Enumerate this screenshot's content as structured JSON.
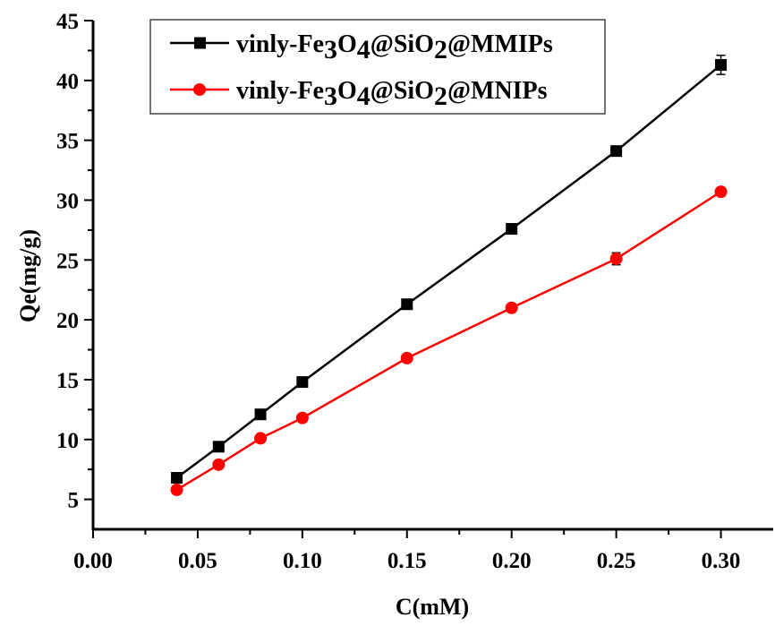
{
  "chart_data": {
    "type": "line",
    "title": "",
    "xlabel": "C(mM)",
    "ylabel": "Qe(mg/g)",
    "xlim": [
      0,
      0.325
    ],
    "ylim": [
      2.5,
      45
    ],
    "xticks": [
      "0.00",
      "0.05",
      "0.10",
      "0.15",
      "0.20",
      "0.25",
      "0.30"
    ],
    "xtick_values": [
      0,
      0.05,
      0.1,
      0.15,
      0.2,
      0.25,
      0.3
    ],
    "yticks": [
      "5",
      "10",
      "15",
      "20",
      "25",
      "30",
      "35",
      "40",
      "45"
    ],
    "ytick_values": [
      5,
      10,
      15,
      20,
      25,
      30,
      35,
      40,
      45
    ],
    "grid": false,
    "legend_position": "top-left",
    "x": [
      0.04,
      0.06,
      0.08,
      0.1,
      0.15,
      0.2,
      0.25,
      0.3
    ],
    "series": [
      {
        "name": "vinly-Fe3O4@SiO2@MMIPs",
        "legend_parts": [
          "vinly-Fe",
          "3",
          "O",
          "4",
          "@SiO",
          "2",
          "@MMIPs"
        ],
        "color": "#000000",
        "marker": "square",
        "values": [
          6.8,
          9.4,
          12.1,
          14.8,
          21.3,
          27.6,
          34.1,
          41.3
        ],
        "errors": [
          0.2,
          0.2,
          0.2,
          0.2,
          0.2,
          0.2,
          0.2,
          0.8
        ]
      },
      {
        "name": "vinly-Fe3O4@SiO2@MNIPs",
        "legend_parts": [
          "vinly-Fe",
          "3",
          "O",
          "4",
          "@SiO",
          "2",
          "@MNIPs"
        ],
        "color": "#ff0000",
        "marker": "circle",
        "values": [
          5.8,
          7.9,
          10.1,
          11.8,
          16.8,
          21.0,
          25.1,
          30.7
        ],
        "errors": [
          0.2,
          0.2,
          0.2,
          0.2,
          0.2,
          0.2,
          0.5,
          0.2
        ]
      }
    ]
  }
}
